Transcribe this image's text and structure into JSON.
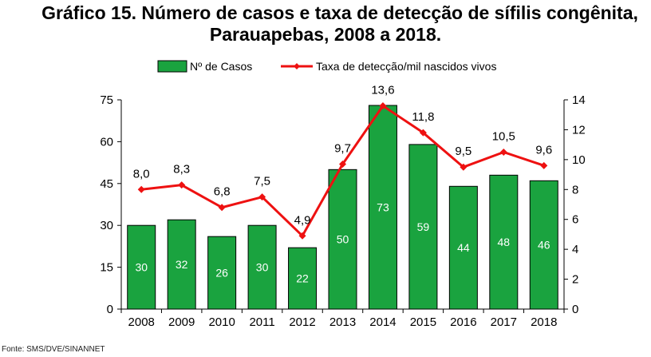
{
  "title": {
    "line1": "Gráfico 15. Número de casos e taxa de detecção de sífilis congênita,",
    "line2": "Parauapebas, 2008 a 2018."
  },
  "source": "Fonte: SMS/DVE/SINANNET",
  "colors": {
    "bar": "#1aa33f",
    "line": "#ee1111",
    "axis": "#000000"
  },
  "chart_data": {
    "type": "bar",
    "categories": [
      "2008",
      "2009",
      "2010",
      "2011",
      "2012",
      "2013",
      "2014",
      "2015",
      "2016",
      "2017",
      "2018"
    ],
    "series": [
      {
        "name": "Nº de Casos",
        "type": "bar",
        "axis": "left",
        "values": [
          30,
          32,
          26,
          30,
          22,
          50,
          73,
          59,
          44,
          48,
          46
        ],
        "labels": [
          "30",
          "32",
          "26",
          "30",
          "22",
          "50",
          "73",
          "59",
          "44",
          "48",
          "46"
        ]
      },
      {
        "name": "Taxa de detecção/mil nascidos vivos",
        "type": "line",
        "axis": "right",
        "values": [
          8.0,
          8.3,
          6.8,
          7.5,
          4.9,
          9.7,
          13.6,
          11.8,
          9.5,
          10.5,
          9.6
        ],
        "labels": [
          "8,0",
          "8,3",
          "6,8",
          "7,5",
          "4,9",
          "9,7",
          "13,6",
          "11,8",
          "9,5",
          "10,5",
          "9,6"
        ]
      }
    ],
    "y_left": {
      "range": [
        0,
        75
      ],
      "ticks": [
        "0",
        "15",
        "30",
        "45",
        "60",
        "75"
      ]
    },
    "y_right": {
      "range": [
        0,
        14
      ],
      "ticks": [
        "0",
        "2",
        "4",
        "6",
        "8",
        "10",
        "12",
        "14"
      ]
    },
    "legend": "top",
    "grid": false
  }
}
